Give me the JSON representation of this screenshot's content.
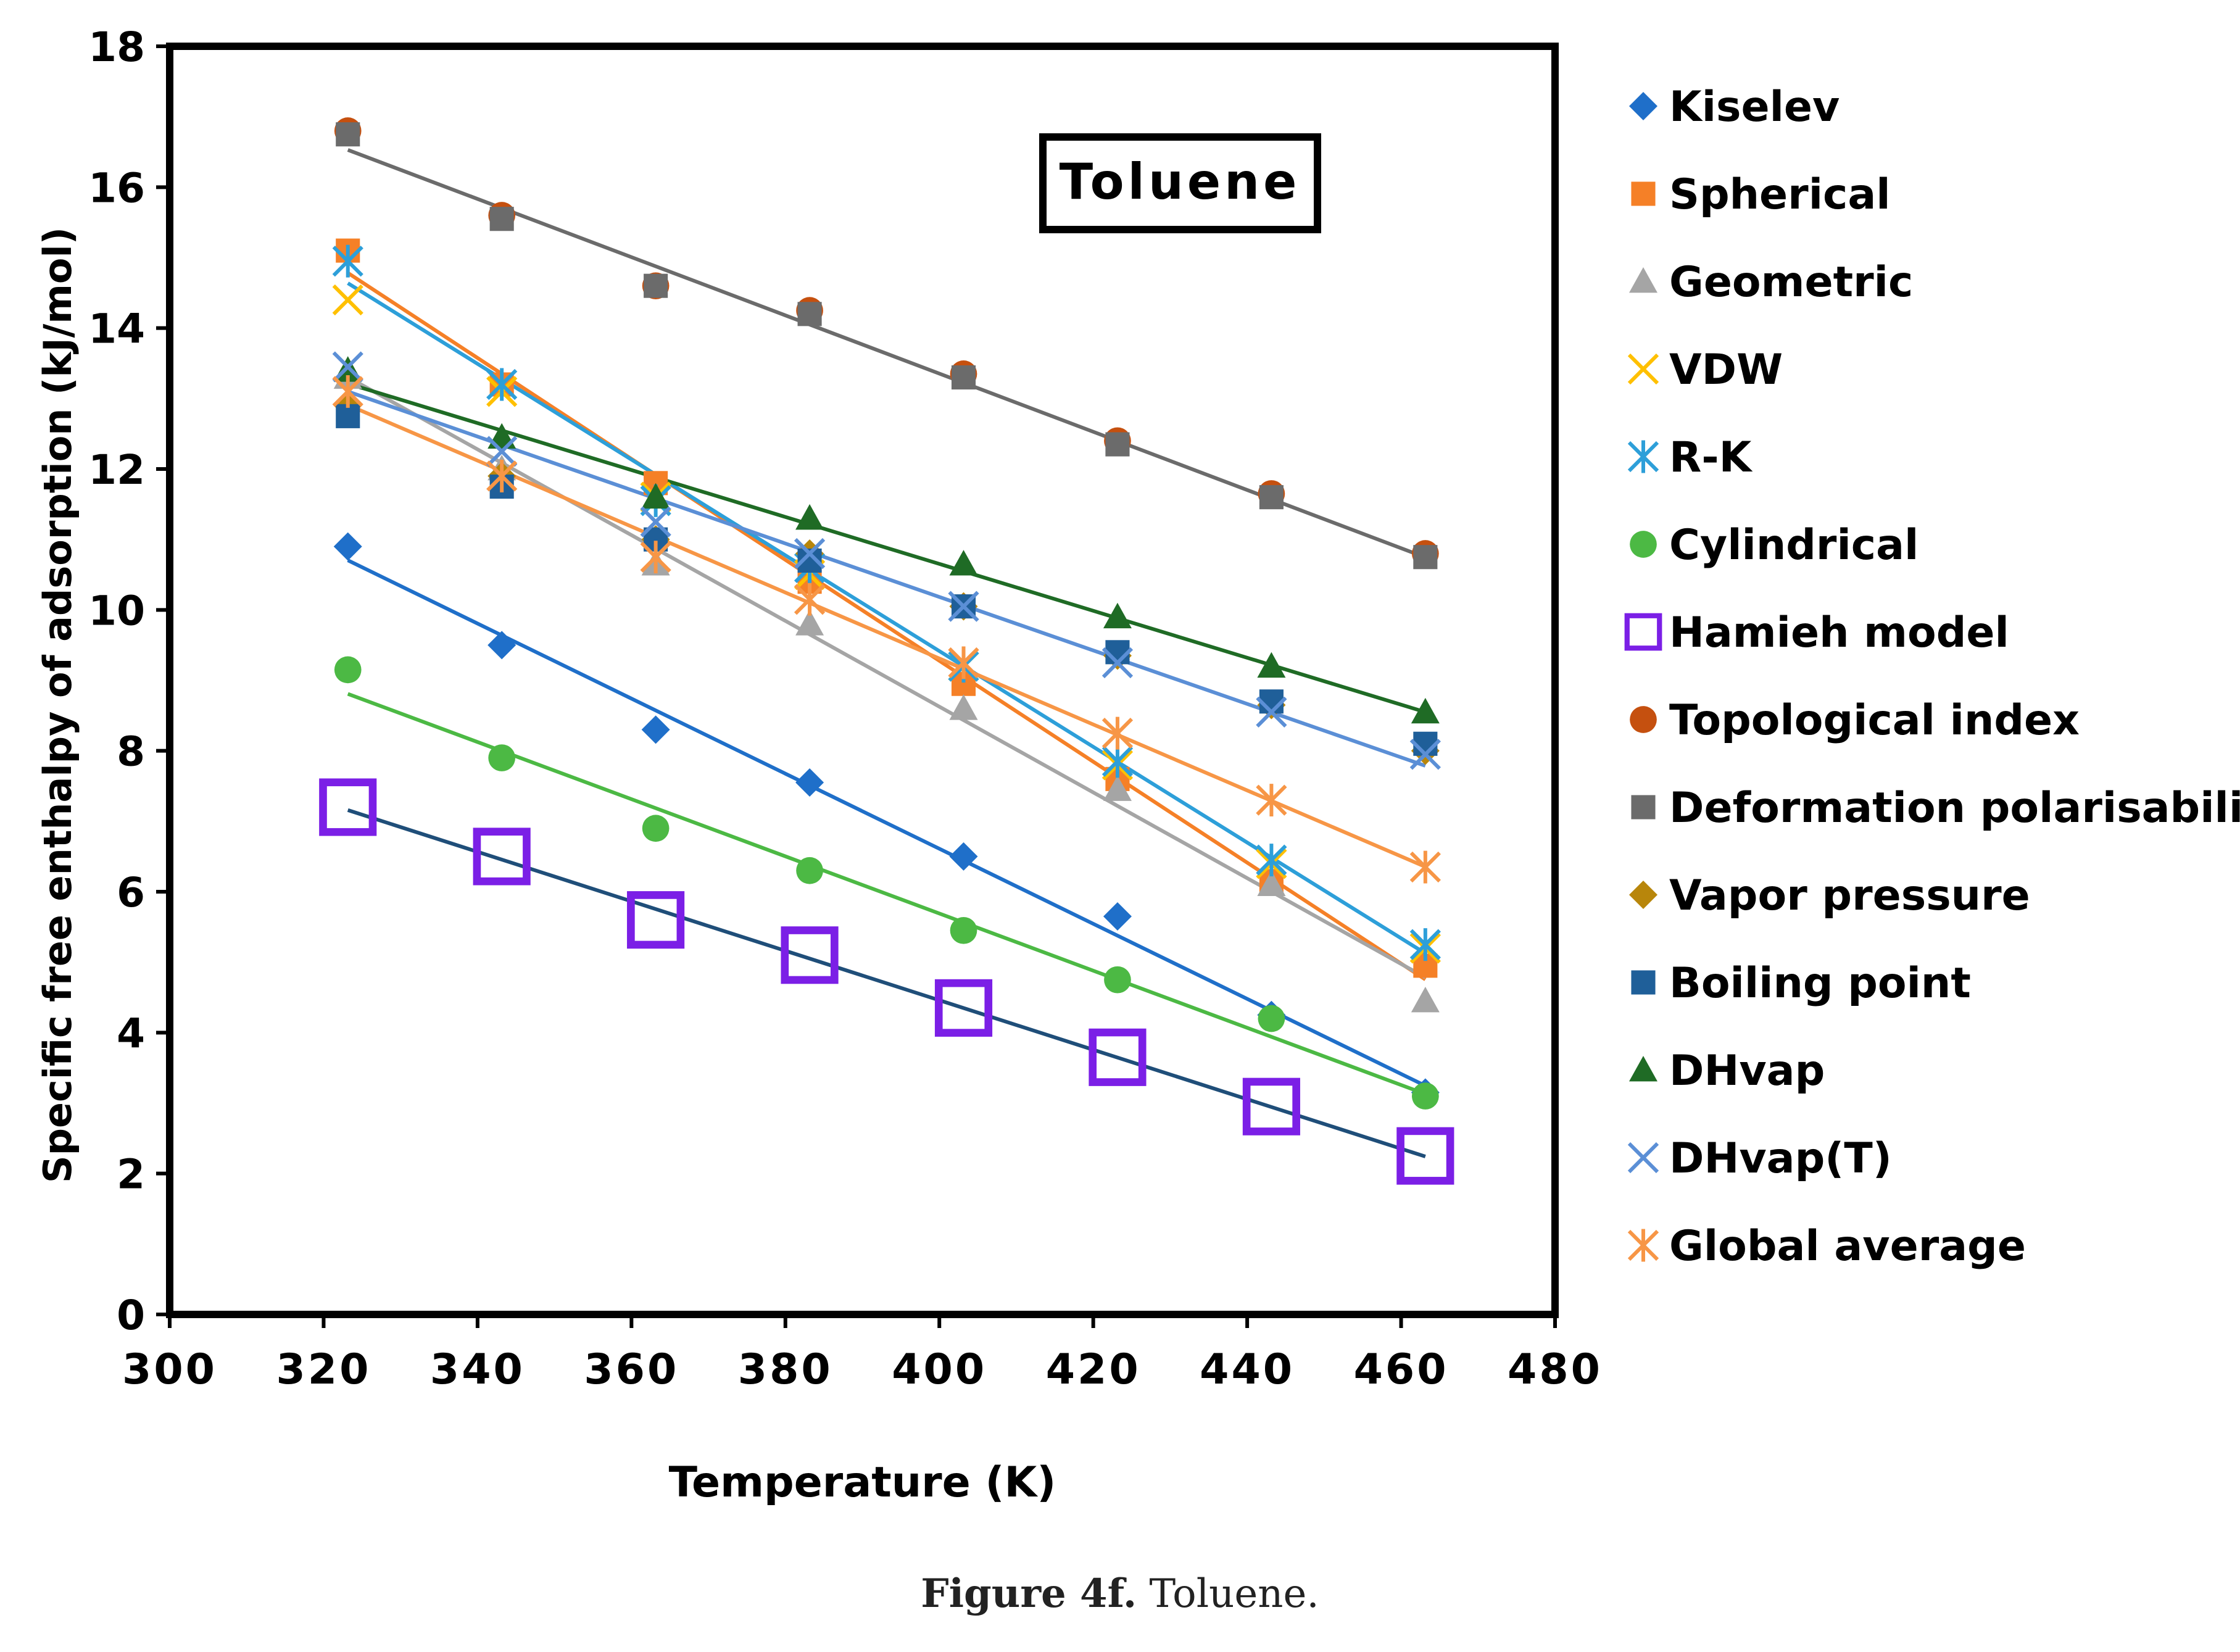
{
  "chart_data": {
    "type": "scatter",
    "title": "Toluene",
    "xlabel": "Temperature (K)",
    "ylabel": "Specific free enthalpy of adsorption (kJ/mol)",
    "xlim": [
      300,
      480
    ],
    "ylim": [
      0,
      18
    ],
    "xticks": [
      300,
      320,
      340,
      360,
      380,
      400,
      420,
      440,
      460,
      480
    ],
    "yticks": [
      0,
      2,
      4,
      6,
      8,
      10,
      12,
      14,
      16,
      18
    ],
    "grid": false,
    "legend_position": "right",
    "x": [
      323.15,
      343.15,
      363.15,
      383.15,
      403.15,
      423.15,
      443.15,
      463.15
    ],
    "series": [
      {
        "name": "Kiselev",
        "marker": "diamond",
        "color": "#1f6fc9",
        "trendline": true,
        "values": [
          10.9,
          9.5,
          8.3,
          7.55,
          6.5,
          5.65,
          4.25,
          3.15
        ]
      },
      {
        "name": "Spherical",
        "marker": "square",
        "color": "#f58027",
        "trendline": true,
        "values": [
          15.1,
          13.2,
          11.8,
          10.4,
          8.95,
          7.6,
          6.15,
          4.95
        ]
      },
      {
        "name": "Geometric",
        "marker": "triangle",
        "color": "#a5a5a5",
        "trendline": true,
        "values": [
          13.3,
          12.0,
          10.65,
          9.8,
          8.6,
          7.45,
          6.1,
          4.45
        ]
      },
      {
        "name": "VDW",
        "marker": "x",
        "color": "#ffc000",
        "trendline": false,
        "values": [
          14.4,
          13.1,
          11.6,
          10.5,
          9.2,
          7.8,
          6.4,
          5.2
        ]
      },
      {
        "name": "R-K",
        "marker": "star",
        "color": "#2d9fd9",
        "trendline": true,
        "values": [
          14.95,
          13.2,
          11.55,
          10.6,
          9.2,
          7.85,
          6.45,
          5.25
        ]
      },
      {
        "name": "Cylindrical",
        "marker": "circle",
        "color": "#4cb944",
        "trendline": true,
        "values": [
          9.15,
          7.9,
          6.9,
          6.3,
          5.45,
          4.75,
          4.2,
          3.1
        ]
      },
      {
        "name": "Hamieh model",
        "marker": "open-square",
        "color": "#7b1fe6",
        "trendline": true,
        "trendline_color": "#1f4e79",
        "values": [
          7.2,
          6.5,
          5.6,
          5.1,
          4.35,
          3.65,
          2.95,
          2.25
        ]
      },
      {
        "name": "Topological index",
        "marker": "circle",
        "color": "#c5500f",
        "trendline": false,
        "values": [
          16.8,
          15.6,
          14.6,
          14.25,
          13.35,
          12.4,
          11.65,
          10.8
        ]
      },
      {
        "name": "Deformation polarisability",
        "marker": "square",
        "color": "#6b6b6b",
        "trendline": true,
        "values": [
          16.75,
          15.55,
          14.6,
          14.2,
          13.3,
          12.35,
          11.6,
          10.75
        ]
      },
      {
        "name": "Vapor pressure",
        "marker": "diamond",
        "color": "#b8860b",
        "trendline": false,
        "values": [
          12.9,
          11.9,
          11.0,
          10.8,
          10.05,
          9.35,
          8.65,
          8.0
        ]
      },
      {
        "name": "Boiling point",
        "marker": "square",
        "color": "#1f5f99",
        "trendline": false,
        "values": [
          12.75,
          11.75,
          11.0,
          10.7,
          10.05,
          9.4,
          8.7,
          8.1
        ]
      },
      {
        "name": "DHvap",
        "marker": "triangle",
        "color": "#1f6b25",
        "trendline": true,
        "values": [
          13.4,
          12.45,
          11.6,
          11.3,
          10.65,
          9.9,
          9.2,
          8.55
        ]
      },
      {
        "name": "DHvap(T)",
        "marker": "x",
        "color": "#5b8fd6",
        "trendline": true,
        "values": [
          13.45,
          12.25,
          11.25,
          10.8,
          10.05,
          9.25,
          8.55,
          7.95
        ]
      },
      {
        "name": "Global average",
        "marker": "star",
        "color": "#f79646",
        "trendline": true,
        "values": [
          13.1,
          11.9,
          10.75,
          10.15,
          9.25,
          8.25,
          7.3,
          6.35
        ]
      }
    ]
  },
  "caption": {
    "label": "Figure 4f.",
    "text": "Toluene."
  }
}
